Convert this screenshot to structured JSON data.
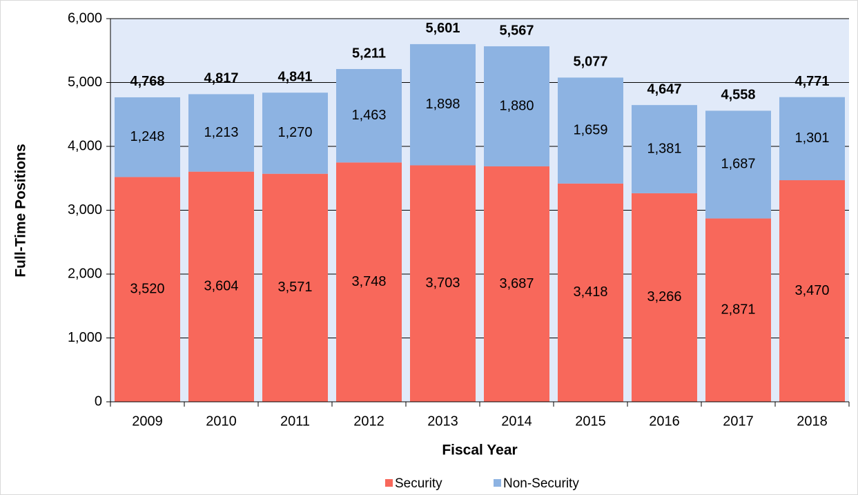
{
  "chart_data": {
    "type": "stacked_bar",
    "x_label": "Fiscal Year",
    "y_label": "Full-Time Positions",
    "categories": [
      "2009",
      "2010",
      "2011",
      "2012",
      "2013",
      "2014",
      "2015",
      "2016",
      "2017",
      "2018"
    ],
    "series": [
      {
        "name": "Security",
        "color": "#f8685b",
        "values": [
          3520,
          3604,
          3571,
          3748,
          3703,
          3687,
          3418,
          3266,
          2871,
          3470
        ],
        "value_labels": [
          "3,520",
          "3,604",
          "3,571",
          "3,748",
          "3,703",
          "3,687",
          "3,418",
          "3,266",
          "2,871",
          "3,470"
        ]
      },
      {
        "name": "Non-Security",
        "color": "#8db3e2",
        "values": [
          1248,
          1213,
          1270,
          1463,
          1898,
          1880,
          1659,
          1381,
          1687,
          1301
        ],
        "value_labels": [
          "1,248",
          "1,213",
          "1,270",
          "1,463",
          "1,898",
          "1,880",
          "1,659",
          "1,381",
          "1,687",
          "1,301"
        ]
      }
    ],
    "totals": [
      4768,
      4817,
      4841,
      5211,
      5601,
      5567,
      5077,
      4647,
      4558,
      4771
    ],
    "total_labels": [
      "4,768",
      "4,817",
      "4,841",
      "5,211",
      "5,601",
      "5,567",
      "5,077",
      "4,647",
      "4,558",
      "4,771"
    ],
    "ylim": [
      0,
      6000
    ],
    "yticks": [
      0,
      {
        "value": 1000,
        "label": "1,000"
      },
      {
        "value": 2000,
        "label": "2,000"
      },
      {
        "value": 3000,
        "label": "3,000"
      },
      {
        "value": 4000,
        "label": "4,000"
      },
      {
        "value": 5000,
        "label": "5,000"
      },
      {
        "value": 6000,
        "label": "6,000"
      }
    ],
    "grid": true,
    "legend": "bottom"
  }
}
